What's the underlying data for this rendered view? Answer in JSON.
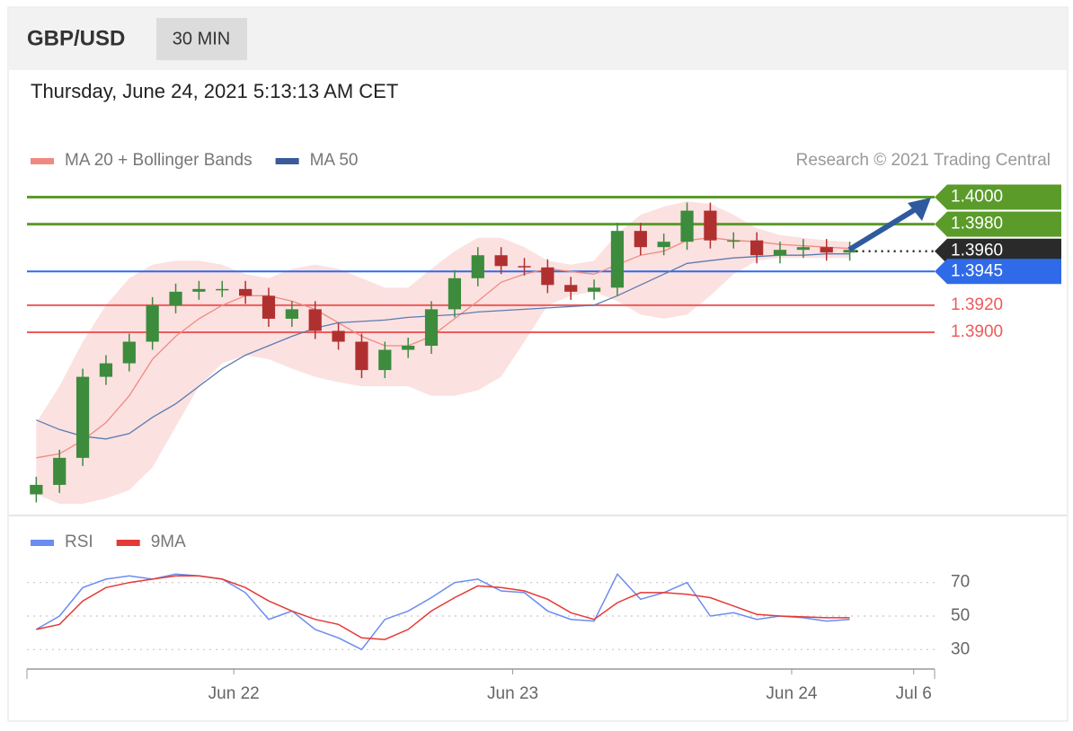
{
  "header": {
    "symbol": "GBP/USD",
    "interval": "30 MIN",
    "timestamp": "Thursday, June 24, 2021 5:13:13 AM CET"
  },
  "attribution": "Research © 2021 Trading Central",
  "chart_data": [
    {
      "type": "candlestick",
      "x": [
        7,
        9,
        11,
        13,
        15,
        17,
        19,
        21,
        23,
        25,
        27,
        29,
        31,
        33,
        35,
        37,
        39,
        41,
        43,
        45,
        47,
        49,
        51,
        53,
        55,
        57,
        59,
        61,
        63,
        65,
        67,
        69,
        71,
        73,
        75,
        77
      ],
      "open": [
        1.378,
        1.3787,
        1.3807,
        1.3867,
        1.3877,
        1.3893,
        1.392,
        1.393,
        1.3932,
        1.3932,
        1.3927,
        1.391,
        1.3917,
        1.3901,
        1.3893,
        1.3872,
        1.3887,
        1.389,
        1.3917,
        1.394,
        1.3957,
        1.3949,
        1.3948,
        1.3935,
        1.393,
        1.3933,
        1.3975,
        1.3963,
        1.3967,
        1.399,
        1.3968,
        1.3968,
        1.3957,
        1.3961,
        1.3963,
        1.3959
      ],
      "high": [
        1.3793,
        1.3813,
        1.3873,
        1.3883,
        1.3899,
        1.3926,
        1.3936,
        1.3938,
        1.3938,
        1.3938,
        1.3933,
        1.3923,
        1.3923,
        1.3907,
        1.3899,
        1.3893,
        1.3896,
        1.3923,
        1.3946,
        1.3963,
        1.3963,
        1.3955,
        1.3954,
        1.3941,
        1.3939,
        1.3981,
        1.3981,
        1.3973,
        1.3996,
        1.3996,
        1.3974,
        1.3974,
        1.3967,
        1.3969,
        1.3969,
        1.3967
      ],
      "low": [
        1.3774,
        1.3781,
        1.3801,
        1.3861,
        1.3871,
        1.3887,
        1.3914,
        1.3924,
        1.3926,
        1.3921,
        1.3904,
        1.3904,
        1.3895,
        1.3887,
        1.3866,
        1.3866,
        1.3881,
        1.3884,
        1.3911,
        1.3934,
        1.3943,
        1.3942,
        1.3929,
        1.3924,
        1.3924,
        1.3927,
        1.3957,
        1.3957,
        1.3961,
        1.3962,
        1.3962,
        1.3951,
        1.3951,
        1.3955,
        1.3953,
        1.3953
      ],
      "close": [
        1.3787,
        1.3807,
        1.3867,
        1.3877,
        1.3893,
        1.392,
        1.393,
        1.3932,
        1.3932,
        1.3927,
        1.391,
        1.3917,
        1.3901,
        1.3893,
        1.3872,
        1.3887,
        1.389,
        1.3917,
        1.394,
        1.3957,
        1.3949,
        1.3948,
        1.3935,
        1.393,
        1.3933,
        1.3975,
        1.3963,
        1.3967,
        1.399,
        1.3968,
        1.3968,
        1.3957,
        1.3961,
        1.3963,
        1.3959,
        1.3961
      ],
      "up_color": "#3d8b3d",
      "down_color": "#b03030",
      "series": [
        {
          "name": "MA 20 + Bollinger Bands",
          "color": "#f08a80",
          "band_color": "#fbdada",
          "values": [
            1.3807,
            1.381,
            1.382,
            1.3833,
            1.3853,
            1.388,
            1.3897,
            1.391,
            1.392,
            1.3927,
            1.3927,
            1.3923,
            1.3917,
            1.3907,
            1.3897,
            1.389,
            1.389,
            1.3897,
            1.391,
            1.3923,
            1.3937,
            1.3943,
            1.3947,
            1.3945,
            1.3943,
            1.395,
            1.3957,
            1.396,
            1.3968,
            1.397,
            1.3968,
            1.3967,
            1.3965,
            1.3964,
            1.3963,
            1.3962
          ],
          "upper": [
            1.3833,
            1.386,
            1.3893,
            1.392,
            1.394,
            1.395,
            1.3953,
            1.3953,
            1.395,
            1.3943,
            1.394,
            1.3947,
            1.395,
            1.3947,
            1.394,
            1.3933,
            1.3933,
            1.3947,
            1.396,
            1.397,
            1.397,
            1.3963,
            1.3953,
            1.395,
            1.3953,
            1.3973,
            1.3987,
            1.3993,
            1.3997,
            1.3995,
            1.3987,
            1.3977,
            1.3972,
            1.397,
            1.3968,
            1.3967
          ],
          "lower": [
            1.378,
            1.3773,
            1.3773,
            1.3777,
            1.3783,
            1.38,
            1.383,
            1.386,
            1.3877,
            1.3883,
            1.388,
            1.3873,
            1.3867,
            1.3863,
            1.386,
            1.386,
            1.386,
            1.3853,
            1.3853,
            1.3857,
            1.3867,
            1.3893,
            1.392,
            1.3927,
            1.393,
            1.3923,
            1.3913,
            1.391,
            1.3913,
            1.3927,
            1.3943,
            1.3953,
            1.3955,
            1.3955,
            1.3955,
            1.3955
          ]
        },
        {
          "name": "MA 50",
          "color": "#5a7cb0",
          "legend_color": "#3a5a9a",
          "values": [
            1.3835,
            1.3828,
            1.3823,
            1.3821,
            1.3825,
            1.3837,
            1.3847,
            1.386,
            1.3873,
            1.3883,
            1.389,
            1.3897,
            1.3903,
            1.3907,
            1.3908,
            1.3909,
            1.3911,
            1.3912,
            1.3913,
            1.3915,
            1.3916,
            1.3917,
            1.3918,
            1.3919,
            1.392,
            1.3927,
            1.3935,
            1.3943,
            1.3951,
            1.3953,
            1.3955,
            1.3956,
            1.3957,
            1.3957,
            1.3958,
            1.3958
          ]
        }
      ],
      "levels": [
        {
          "value": 1.4,
          "label": "1.4000",
          "color": "#5b9b2a",
          "line": "solid",
          "style": "badge"
        },
        {
          "value": 1.398,
          "label": "1.3980",
          "color": "#5b9b2a",
          "line": "solid",
          "style": "badge"
        },
        {
          "value": 1.396,
          "label": "1.3960",
          "color": "#2a2a2a",
          "line": "dotted",
          "style": "badge"
        },
        {
          "value": 1.3945,
          "label": "1.3945",
          "color": "#2f6ae8",
          "line": "solid",
          "style": "badge"
        },
        {
          "value": 1.392,
          "label": "1.3920",
          "color": "#f05a5a",
          "line": "solid",
          "style": "text"
        },
        {
          "value": 1.39,
          "label": "1.3900",
          "color": "#f05a5a",
          "line": "solid",
          "style": "text"
        }
      ],
      "xlim": [
        6.2,
        84.3
      ],
      "ylim": [
        1.3767,
        1.4013
      ]
    },
    {
      "type": "line",
      "x": [
        7,
        9,
        11,
        13,
        15,
        17,
        19,
        21,
        23,
        25,
        27,
        29,
        31,
        33,
        35,
        37,
        39,
        41,
        43,
        45,
        47,
        49,
        51,
        53,
        55,
        57,
        59,
        61,
        63,
        65,
        67,
        69,
        71,
        73,
        75,
        77
      ],
      "series": [
        {
          "name": "RSI",
          "color": "#6b8cf0",
          "values": [
            42,
            50,
            67,
            72,
            74,
            72,
            75,
            74,
            72,
            64,
            48,
            53,
            42,
            37,
            30,
            48,
            53,
            61,
            70,
            72,
            65,
            64,
            53,
            48,
            47,
            75,
            60,
            64,
            70,
            50,
            52,
            48,
            50,
            49,
            47,
            48
          ]
        },
        {
          "name": "9MA",
          "color": "#e53935",
          "values": [
            42,
            45,
            59,
            67,
            70,
            72,
            74,
            74,
            72,
            67,
            59,
            53,
            48,
            45,
            37,
            36,
            42,
            53,
            61,
            68,
            67,
            65,
            60,
            52,
            48,
            58,
            64,
            64,
            63,
            61,
            56,
            51,
            50,
            49.5,
            49,
            49
          ]
        }
      ],
      "ylim": [
        20,
        80
      ],
      "yticks": [
        30,
        50,
        70
      ],
      "grid": true,
      "xlim": [
        6.2,
        84.3
      ],
      "xticks": [
        {
          "value": 24,
          "label": "Jun 22"
        },
        {
          "value": 48,
          "label": "Jun 23"
        },
        {
          "value": 72,
          "label": "Jun 24"
        },
        {
          "value": 82.5,
          "label": "Jul 6"
        }
      ]
    }
  ]
}
